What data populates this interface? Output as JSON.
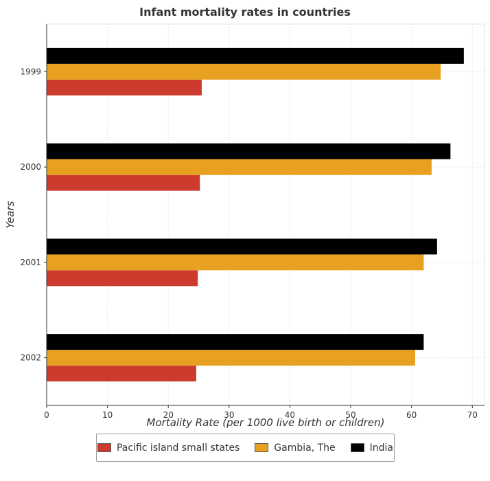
{
  "chart_data": {
    "type": "bar",
    "orientation": "horizontal",
    "title": "Infant mortality rates in countries",
    "xlabel": "Mortality Rate (per 1000 live birth or children)",
    "ylabel": "Years",
    "categories": [
      "1999",
      "2000",
      "2001",
      "2002"
    ],
    "xlim": [
      0,
      72
    ],
    "xticks": [
      0,
      10,
      20,
      30,
      40,
      50,
      60,
      70
    ],
    "series": [
      {
        "name": "Pacific island small states",
        "color": "#cd3b2f",
        "values": [
          25.5,
          25.2,
          24.85,
          24.6
        ]
      },
      {
        "name": "Gambia, The",
        "color": "#e8a020",
        "values": [
          64.8,
          63.3,
          62.0,
          60.6
        ]
      },
      {
        "name": "India",
        "color": "#000000",
        "values": [
          68.6,
          66.4,
          64.2,
          62.0
        ]
      }
    ],
    "grid": true,
    "legend": "bottom-center"
  }
}
